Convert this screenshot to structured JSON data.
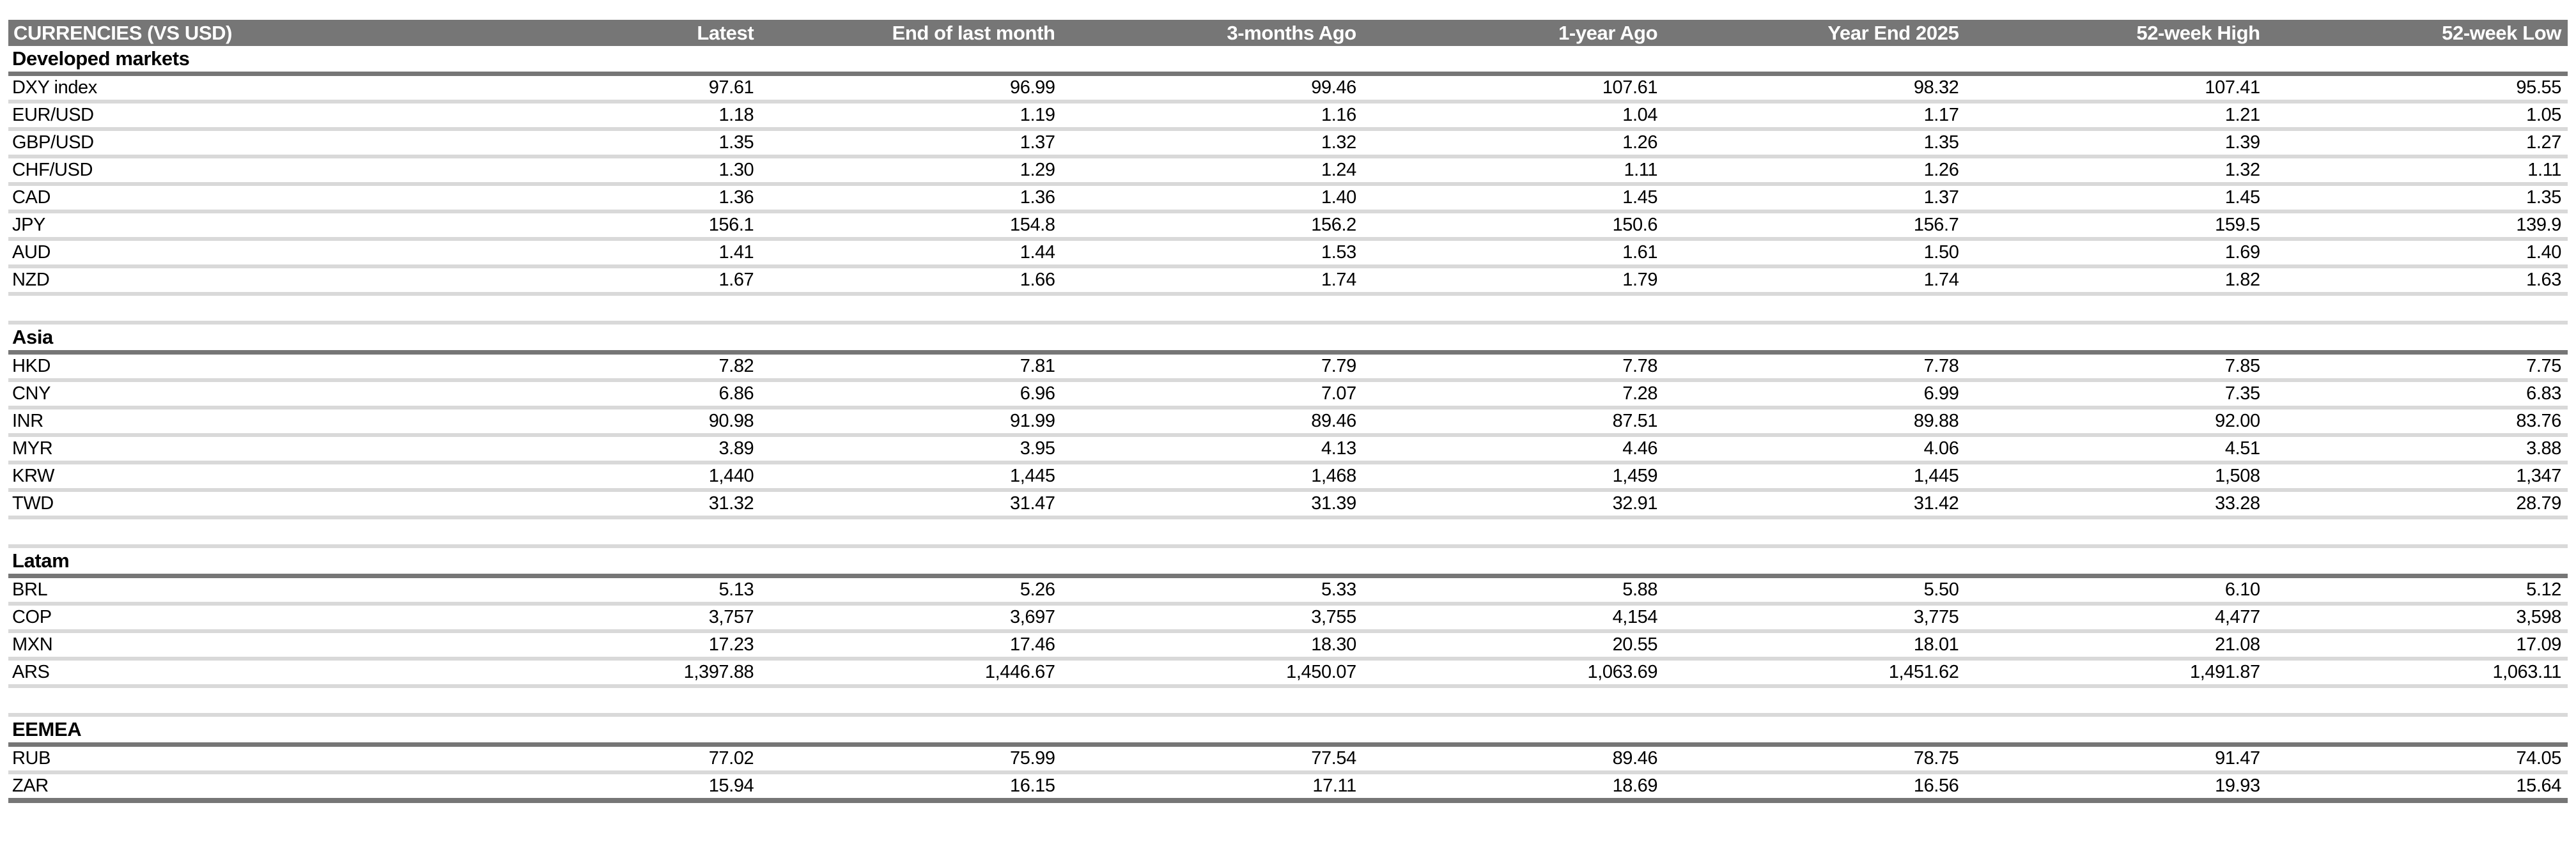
{
  "table": {
    "header": {
      "label": "CURRENCIES (VS USD)",
      "columns": [
        "Latest",
        "End of last month",
        "3-months Ago",
        "1-year Ago",
        "Year End 2025",
        "52-week High",
        "52-week Low"
      ]
    },
    "sections": [
      {
        "title": "Developed markets",
        "rows": [
          [
            "DXY index",
            "97.61",
            "96.99",
            "99.46",
            "107.61",
            "98.32",
            "107.41",
            "95.55"
          ],
          [
            "EUR/USD",
            "1.18",
            "1.19",
            "1.16",
            "1.04",
            "1.17",
            "1.21",
            "1.05"
          ],
          [
            "GBP/USD",
            "1.35",
            "1.37",
            "1.32",
            "1.26",
            "1.35",
            "1.39",
            "1.27"
          ],
          [
            "CHF/USD",
            "1.30",
            "1.29",
            "1.24",
            "1.11",
            "1.26",
            "1.32",
            "1.11"
          ],
          [
            "CAD",
            "1.36",
            "1.36",
            "1.40",
            "1.45",
            "1.37",
            "1.45",
            "1.35"
          ],
          [
            "JPY",
            "156.1",
            "154.8",
            "156.2",
            "150.6",
            "156.7",
            "159.5",
            "139.9"
          ],
          [
            "AUD",
            "1.41",
            "1.44",
            "1.53",
            "1.61",
            "1.50",
            "1.69",
            "1.40"
          ],
          [
            "NZD",
            "1.67",
            "1.66",
            "1.74",
            "1.79",
            "1.74",
            "1.82",
            "1.63"
          ]
        ]
      },
      {
        "title": "Asia",
        "rows": [
          [
            "HKD",
            "7.82",
            "7.81",
            "7.79",
            "7.78",
            "7.78",
            "7.85",
            "7.75"
          ],
          [
            "CNY",
            "6.86",
            "6.96",
            "7.07",
            "7.28",
            "6.99",
            "7.35",
            "6.83"
          ],
          [
            "INR",
            "90.98",
            "91.99",
            "89.46",
            "87.51",
            "89.88",
            "92.00",
            "83.76"
          ],
          [
            "MYR",
            "3.89",
            "3.95",
            "4.13",
            "4.46",
            "4.06",
            "4.51",
            "3.88"
          ],
          [
            "KRW",
            "1,440",
            "1,445",
            "1,468",
            "1,459",
            "1,445",
            "1,508",
            "1,347"
          ],
          [
            "TWD",
            "31.32",
            "31.47",
            "31.39",
            "32.91",
            "31.42",
            "33.28",
            "28.79"
          ]
        ]
      },
      {
        "title": "Latam",
        "rows": [
          [
            "BRL",
            "5.13",
            "5.26",
            "5.33",
            "5.88",
            "5.50",
            "6.10",
            "5.12"
          ],
          [
            "COP",
            "3,757",
            "3,697",
            "3,755",
            "4,154",
            "3,775",
            "4,477",
            "3,598"
          ],
          [
            "MXN",
            "17.23",
            "17.46",
            "18.30",
            "20.55",
            "18.01",
            "21.08",
            "17.09"
          ],
          [
            "ARS",
            "1,397.88",
            "1,446.67",
            "1,450.07",
            "1,063.69",
            "1,451.62",
            "1,491.87",
            "1,063.11"
          ]
        ]
      },
      {
        "title": "EEMEA",
        "rows": [
          [
            "RUB",
            "77.02",
            "75.99",
            "77.54",
            "89.46",
            "78.75",
            "91.47",
            "74.05"
          ],
          [
            "ZAR",
            "15.94",
            "16.15",
            "17.11",
            "18.69",
            "16.56",
            "19.93",
            "15.64"
          ]
        ]
      }
    ],
    "colors": {
      "header_bg": "#767676",
      "header_text": "#ffffff",
      "row_rule": "#d9d9d9",
      "section_rule": "#767676",
      "body_text": "#000000"
    }
  }
}
